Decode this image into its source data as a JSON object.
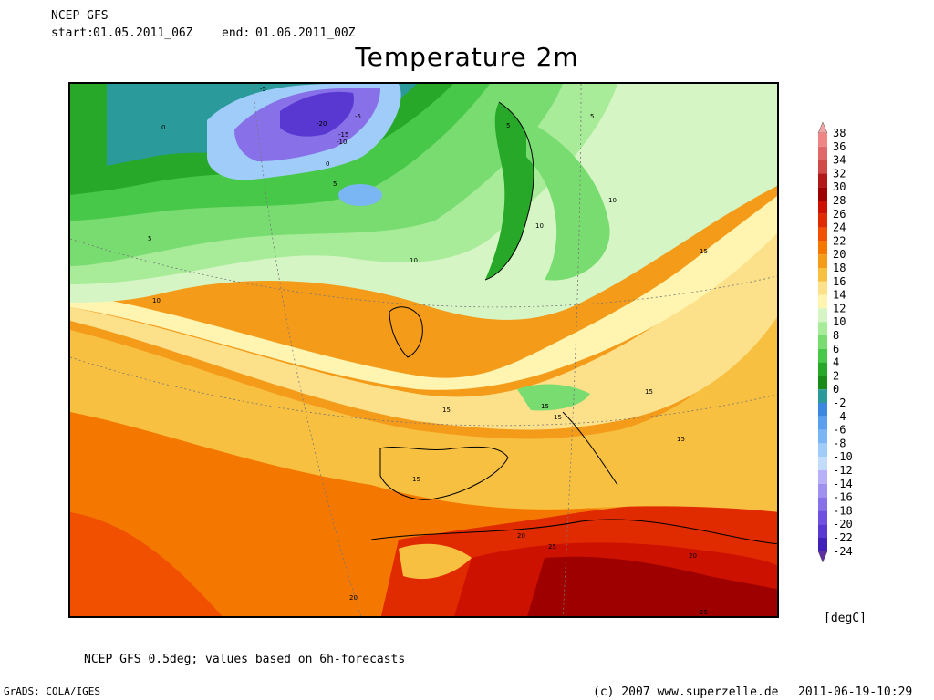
{
  "header": {
    "model": "NCEP GFS",
    "start_label": "start:",
    "start_value": "01.05.2011_06Z",
    "end_label": "end:",
    "end_value": "01.06.2011_00Z"
  },
  "title": "Temperature 2m",
  "colorbar": {
    "unit": "[degC]",
    "levels": [
      "38",
      "36",
      "34",
      "32",
      "30",
      "28",
      "26",
      "24",
      "22",
      "20",
      "18",
      "16",
      "14",
      "12",
      "10",
      "8",
      "6",
      "4",
      "2",
      "0",
      "-2",
      "-4",
      "-6",
      "-8",
      "-10",
      "-12",
      "-14",
      "-16",
      "-18",
      "-20",
      "-22",
      "-24"
    ],
    "colors": [
      "#f4a3a3",
      "#ee8686",
      "#e06868",
      "#d04a4a",
      "#b21818",
      "#9e0000",
      "#cc1100",
      "#e02a00",
      "#f05000",
      "#f47800",
      "#f49b1a",
      "#f8c040",
      "#fce08a",
      "#fff5b0",
      "#d6f5c5",
      "#a8ec9a",
      "#78dc70",
      "#48c848",
      "#28a828",
      "#188a18",
      "#2a9a9a",
      "#3c88e0",
      "#5aa0ee",
      "#7ab6f4",
      "#a0ccfa",
      "#c4dcfc",
      "#b8b0f8",
      "#a090f0",
      "#8870e8",
      "#7050e0",
      "#5838d0",
      "#4020b8",
      "#6030a0"
    ]
  },
  "map": {
    "contour_labels": [
      "-5",
      "0",
      "-20",
      "-5",
      "-10",
      "-15",
      "0",
      "5",
      "5",
      "5",
      "5",
      "10",
      "10",
      "10",
      "10",
      "15",
      "15",
      "15",
      "15",
      "15",
      "15",
      "15",
      "20",
      "20",
      "20",
      "25",
      "25"
    ]
  },
  "footer": {
    "note": "NCEP GFS 0.5deg; values based on 6h-forecasts",
    "grads": "GrADS: COLA/IGES",
    "copyright": "(c) 2007 www.superzelle.de",
    "timestamp": "2011-06-19-10:29"
  }
}
